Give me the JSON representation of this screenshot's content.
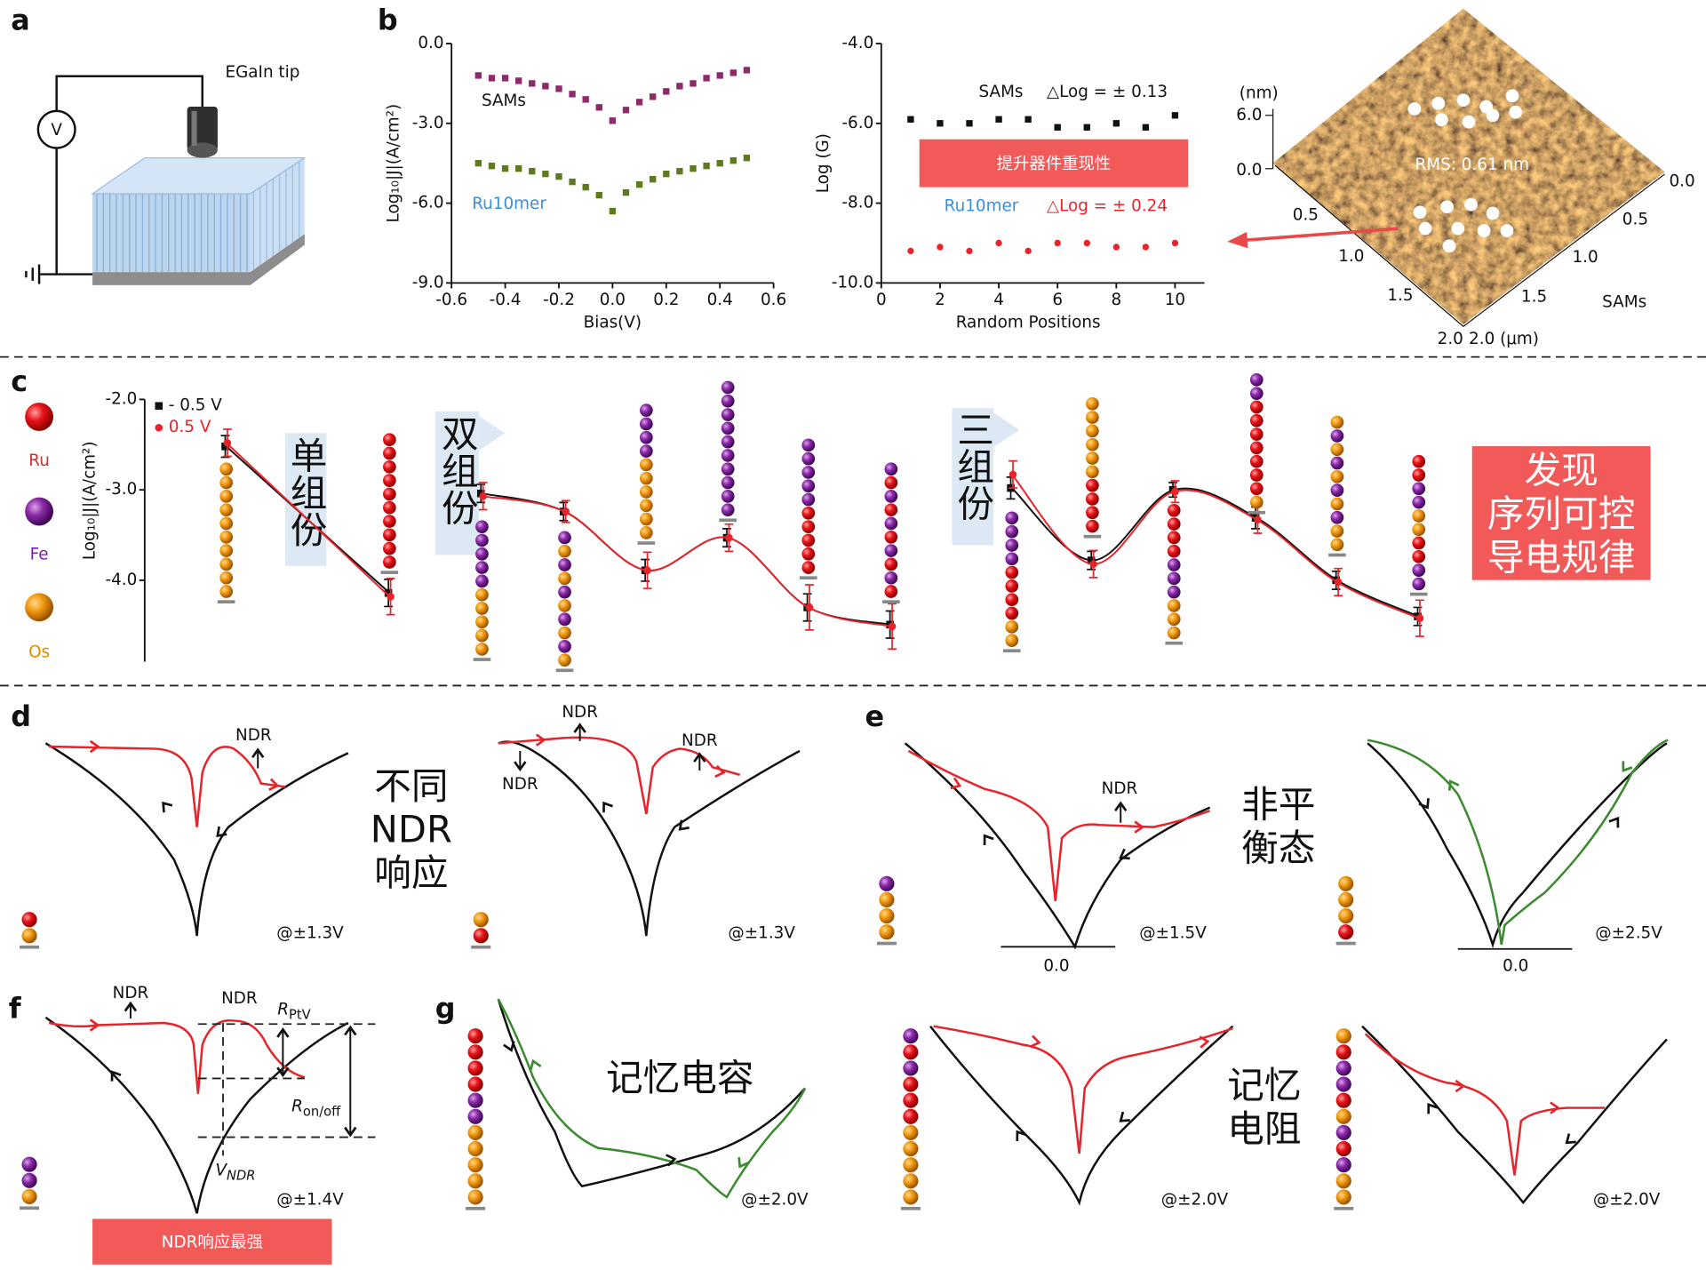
{
  "panel_labels": {
    "a": "a",
    "b": "b",
    "c": "c",
    "d": "d",
    "e": "e",
    "f": "f",
    "g": "g"
  },
  "panel_a": {
    "tip": "EGaIn tip",
    "meter": "V"
  },
  "chart_data": [
    {
      "type": "scatter",
      "x_label": "Bias(V)",
      "y_label": "Log₁₀|J|(A/cm²)",
      "x": [
        -0.5,
        -0.45,
        -0.4,
        -0.35,
        -0.3,
        -0.25,
        -0.2,
        -0.15,
        -0.1,
        -0.05,
        0,
        0.05,
        0.1,
        0.15,
        0.2,
        0.25,
        0.3,
        0.35,
        0.4,
        0.45,
        0.5
      ],
      "series": [
        {
          "name": "SAMs",
          "color": "#8e2a6a",
          "name_color": "#111111",
          "marker": "square",
          "values": [
            -1.2,
            -1.3,
            -1.3,
            -1.4,
            -1.5,
            -1.6,
            -1.7,
            -1.9,
            -2.1,
            -2.4,
            -2.9,
            -2.5,
            -2.2,
            -2.0,
            -1.8,
            -1.6,
            -1.5,
            -1.3,
            -1.2,
            -1.1,
            -1.0
          ]
        },
        {
          "name": "Ru10mer",
          "color": "#5d7a1f",
          "name_color": "#3a8fd9",
          "marker": "square",
          "values": [
            -4.5,
            -4.6,
            -4.7,
            -4.7,
            -4.8,
            -4.9,
            -5.0,
            -5.2,
            -5.4,
            -5.7,
            -6.3,
            -5.6,
            -5.3,
            -5.1,
            -4.9,
            -4.8,
            -4.7,
            -4.6,
            -4.5,
            -4.4,
            -4.3
          ]
        }
      ],
      "xlim": [
        -0.6,
        0.6
      ],
      "ylim": [
        -9.0,
        0.0
      ],
      "xticks": [
        -0.6,
        -0.4,
        -0.2,
        {
          "value": 0,
          "label": "0.0"
        },
        0.2,
        0.4,
        0.6
      ],
      "yticks": [
        {
          "value": 0,
          "label": "0.0"
        },
        {
          "value": -3,
          "label": "-3.0"
        },
        {
          "value": -6,
          "label": "-6.0"
        },
        {
          "value": -9,
          "label": "-9.0"
        }
      ]
    },
    {
      "type": "scatter",
      "x_label": "Random Positions",
      "y_label": "Log (G)",
      "x": [
        1,
        2,
        3,
        4,
        5,
        6,
        7,
        8,
        9,
        10
      ],
      "series": [
        {
          "name": "SAMs",
          "color": "#111111",
          "name_color": "#111111",
          "marker": "square",
          "values": [
            -5.9,
            -6.0,
            -6.0,
            -5.9,
            -5.9,
            -6.1,
            -6.1,
            -6.0,
            -6.1,
            -5.8
          ],
          "annotation": "△Log = ± 0.13",
          "annotation_color": "#111111"
        },
        {
          "name": "Ru10mer",
          "color": "#e8242a",
          "name_color": "#3a8fd9",
          "marker": "circle",
          "values": [
            -9.2,
            -9.1,
            -9.2,
            -9.0,
            -9.2,
            -9.0,
            -9.0,
            -9.1,
            -9.1,
            -9.0
          ],
          "annotation": "△Log = ± 0.24",
          "annotation_color": "#e8242a"
        }
      ],
      "xlim": [
        0,
        11
      ],
      "ylim": [
        -10.0,
        -4.0
      ],
      "xticks": [
        0,
        2,
        4,
        6,
        8,
        10
      ],
      "yticks": [
        {
          "value": -4,
          "label": "-4.0"
        },
        {
          "value": -6,
          "label": "-6.0"
        },
        {
          "value": -8,
          "label": "-8.0"
        },
        {
          "value": -10,
          "label": "-10.0"
        }
      ],
      "highlight": "提升器件重现性"
    },
    {
      "type": "line",
      "y_label": "Log₁₀|J|(A/cm²)",
      "categories": [
        null,
        null,
        null,
        null,
        null,
        null,
        null,
        null,
        null,
        null,
        null,
        null,
        null,
        null
      ],
      "series": [
        {
          "name": "- 0.5 V",
          "color": "#111111",
          "marker": "square",
          "values": [
            -2.52,
            -4.14,
            -3.04,
            -3.24,
            -3.89,
            -3.53,
            -4.3,
            -4.49,
            -2.98,
            -3.78,
            -3.0,
            -3.31,
            -4.0,
            -4.4
          ],
          "errors": [
            0.12,
            0.15,
            0.1,
            0.1,
            0.12,
            0.1,
            0.15,
            0.15,
            0.12,
            0.1,
            0.08,
            0.12,
            0.1,
            0.1
          ]
        },
        {
          "name": "0.5 V",
          "color": "#e8242a",
          "marker": "circle",
          "values": [
            -2.48,
            -4.18,
            -3.07,
            -3.24,
            -3.89,
            -3.53,
            -4.3,
            -4.51,
            -2.83,
            -3.82,
            -3.02,
            -3.33,
            -4.02,
            -4.42
          ],
          "errors": [
            0.15,
            0.2,
            0.15,
            0.12,
            0.2,
            0.15,
            0.25,
            0.25,
            0.15,
            0.15,
            0.12,
            0.15,
            0.15,
            0.2
          ]
        }
      ],
      "ylim": [
        -4.9,
        -2.0
      ],
      "yticks": [
        {
          "value": -2,
          "label": "-2.0"
        },
        {
          "value": -3,
          "label": "-3.0"
        },
        {
          "value": -4,
          "label": "-4.0"
        }
      ],
      "legend": "upper left"
    }
  ],
  "afm": {
    "unit": "(nm)",
    "z_ticks": [
      "6.0",
      "0.0"
    ],
    "rms": "RMS: 0.61 nm",
    "left_ticks": [
      "0.5",
      "1.0",
      "1.5",
      "2.0"
    ],
    "right_ticks": [
      "0.0",
      "0.5",
      "1.0",
      "1.5",
      "2.0 (μm)"
    ],
    "sample": "SAMs"
  },
  "panel_c": {
    "elements": [
      "Ru",
      "Fe",
      "Os"
    ],
    "groups": [
      "单组份",
      "双组份",
      "三组份"
    ],
    "finding": [
      "发现",
      "序列可控",
      "导电规律"
    ]
  },
  "panel_d": {
    "ndr": [
      "NDR",
      "NDR",
      "NDR",
      "NDR"
    ],
    "bias": [
      "@±1.3V",
      "@±1.3V"
    ],
    "note": [
      "不同",
      "NDR",
      "响应"
    ]
  },
  "panel_e": {
    "ndr": "NDR",
    "zero": [
      "0.0",
      "0.0"
    ],
    "bias": [
      "@±1.5V",
      "@±2.5V"
    ],
    "note": [
      "非平",
      "衡态"
    ]
  },
  "panel_f": {
    "ndr": [
      "NDR",
      "NDR"
    ],
    "r_ptv": {
      "symbol": "R",
      "sub": "PtV"
    },
    "r_onoff": {
      "symbol": "R",
      "sub": "on/off"
    },
    "v_ndr": {
      "symbol": "V",
      "sub": "NDR"
    },
    "bias": "@±1.4V",
    "highlight": "NDR响应最强"
  },
  "panel_g": {
    "capacitor": "记忆电容",
    "resistor": [
      "记忆",
      "电阻"
    ],
    "bias": [
      "@±2.0V",
      "@±2.0V",
      "@±2.0V"
    ]
  }
}
